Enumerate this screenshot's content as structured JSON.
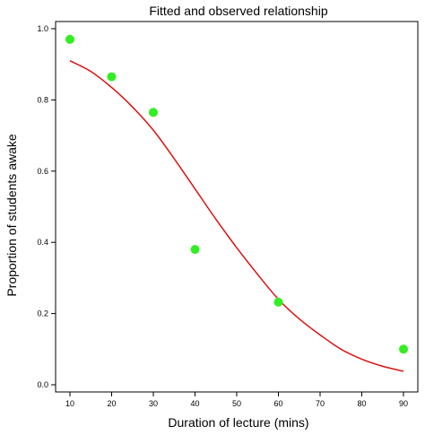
{
  "chart_data": {
    "type": "scatter",
    "title": "Fitted and observed relationship",
    "xlabel": "Duration of lecture (mins)",
    "ylabel": "Proportion of students awake",
    "xlim": [
      10,
      90
    ],
    "ylim": [
      0.0,
      1.0
    ],
    "x_ticks": [
      10,
      20,
      30,
      40,
      50,
      60,
      70,
      80,
      90
    ],
    "x_tick_labels": [
      "10",
      "20",
      "30",
      "40",
      "50",
      "60",
      "70",
      "80",
      "90"
    ],
    "y_ticks": [
      0.0,
      0.2,
      0.4,
      0.6,
      0.8,
      1.0
    ],
    "y_tick_labels": [
      "0.0",
      "0.2",
      "0.4",
      "0.6",
      "0.8",
      "1.0"
    ],
    "grid": false,
    "series": [
      {
        "kind": "observed-points",
        "color": "#33ee22",
        "x": [
          10,
          20,
          30,
          40,
          60,
          90
        ],
        "y": [
          0.97,
          0.865,
          0.765,
          0.38,
          0.232,
          0.1
        ]
      },
      {
        "kind": "fitted-curve",
        "color": "#dd1111",
        "x": [
          10,
          15,
          20,
          25,
          30,
          35,
          40,
          45,
          50,
          55,
          60,
          65,
          70,
          75,
          80,
          85,
          90
        ],
        "y": [
          0.91,
          0.88,
          0.835,
          0.78,
          0.715,
          0.635,
          0.55,
          0.465,
          0.385,
          0.31,
          0.24,
          0.185,
          0.14,
          0.1,
          0.072,
          0.052,
          0.038
        ]
      }
    ]
  }
}
